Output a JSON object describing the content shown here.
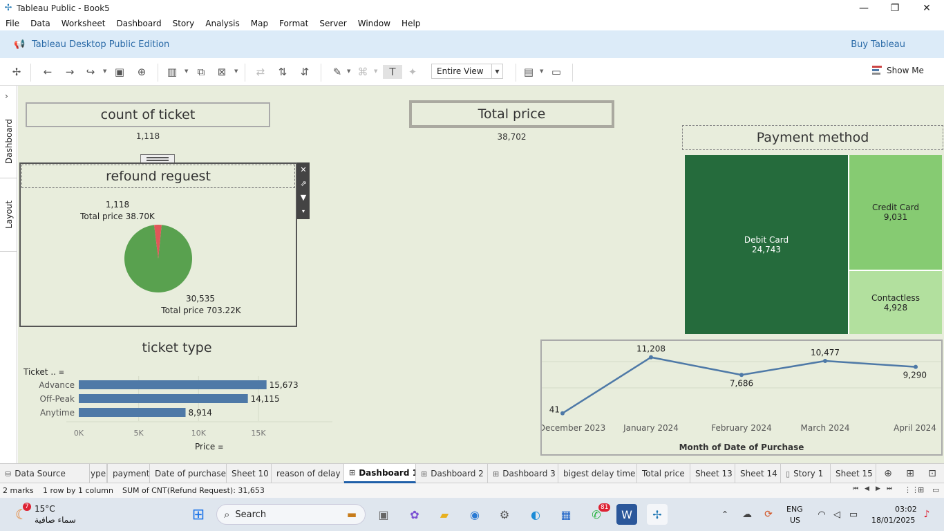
{
  "window": {
    "title": "Tableau Public - Book5"
  },
  "menu": [
    "File",
    "Data",
    "Worksheet",
    "Dashboard",
    "Story",
    "Analysis",
    "Map",
    "Format",
    "Server",
    "Window",
    "Help"
  ],
  "banner": {
    "edition": "Tableau Desktop Public Edition",
    "buy": "Buy Tableau"
  },
  "toolbar": {
    "fit_value": "Entire View",
    "show_me": "Show Me"
  },
  "side_tabs": {
    "dashboard": "Dashboard",
    "layout": "Layout"
  },
  "kpis": {
    "count_title": "count of ticket",
    "count_value": "1,118",
    "total_title": "Total price",
    "total_value": "38,702"
  },
  "refund": {
    "title": "refound reguest",
    "slice_small": {
      "count": "1,118",
      "price": "Total price 38.70K",
      "value": 1118,
      "color": "#e15759"
    },
    "slice_large": {
      "count": "30,535",
      "price": "Total price 703.22K",
      "value": 30535,
      "color": "#59a14f"
    }
  },
  "ticket_type": {
    "title": "ticket type",
    "header": "Ticket ..",
    "xlabel": "Price",
    "ticks": [
      "0K",
      "5K",
      "10K",
      "15K"
    ]
  },
  "payment": {
    "title": "Payment method",
    "cells": [
      {
        "name": "Debit Card",
        "value": "24,743",
        "color": "#256b3c",
        "text_color": "#ffffff"
      },
      {
        "name": "Credit Card",
        "value": "9,031",
        "color": "#86cb72",
        "text_color": "#222222"
      },
      {
        "name": "Contactless",
        "value": "4,928",
        "color": "#b2e09e",
        "text_color": "#222222"
      }
    ]
  },
  "chart_data": [
    {
      "type": "bar",
      "categories": [
        "Advance",
        "Off-Peak",
        "Anytime"
      ],
      "values": [
        15673,
        14115,
        8914
      ],
      "value_labels": [
        "15,673",
        "14,115",
        "8,914"
      ],
      "xlabel": "Price",
      "ylabel": "Ticket ..",
      "xlim": [
        0,
        18000
      ],
      "color": "#4e79a7"
    },
    {
      "type": "line",
      "x": [
        "December 2023",
        "January 2024",
        "February 2024",
        "March 2024",
        "April 2024"
      ],
      "values": [
        41,
        11208,
        7686,
        10477,
        9290
      ],
      "value_labels": [
        "41",
        "11,208",
        "7,686",
        "10,477",
        "9,290"
      ],
      "xlabel": "Month of Date of Purchase",
      "ylim": [
        0,
        12000
      ],
      "color": "#4e79a7"
    },
    {
      "type": "pie",
      "categories": [
        "1,118",
        "30,535"
      ],
      "values": [
        1118,
        30535
      ],
      "title": "refound reguest"
    }
  ],
  "tabs": [
    {
      "label": "Data Source",
      "icon": "db"
    },
    {
      "label": "ype"
    },
    {
      "label": "payment"
    },
    {
      "label": "Date of purchase"
    },
    {
      "label": "Sheet 10"
    },
    {
      "label": "reason of delay"
    },
    {
      "label": "Dashboard 1",
      "icon": "grid",
      "active": true
    },
    {
      "label": "Dashboard 2",
      "icon": "grid"
    },
    {
      "label": "Dashboard 3",
      "icon": "grid"
    },
    {
      "label": "bigest delay time"
    },
    {
      "label": "Total price"
    },
    {
      "label": "Sheet 13"
    },
    {
      "label": "Sheet 14"
    },
    {
      "label": "Story 1",
      "icon": "book"
    },
    {
      "label": "Sheet 15"
    }
  ],
  "status": {
    "marks": "2 marks",
    "rows": "1 row",
    "by": "by",
    "cols": "1 column",
    "sum": "SUM of CNT(Refund Request): 31,653"
  },
  "taskbar": {
    "weather_temp": "15°C",
    "weather_desc": "سماء صافية",
    "weather_badge": "7",
    "search": "Search",
    "whatsapp_badge": "81",
    "lang1": "ENG",
    "lang2": "US",
    "time": "03:02",
    "date": "18/01/2025"
  }
}
